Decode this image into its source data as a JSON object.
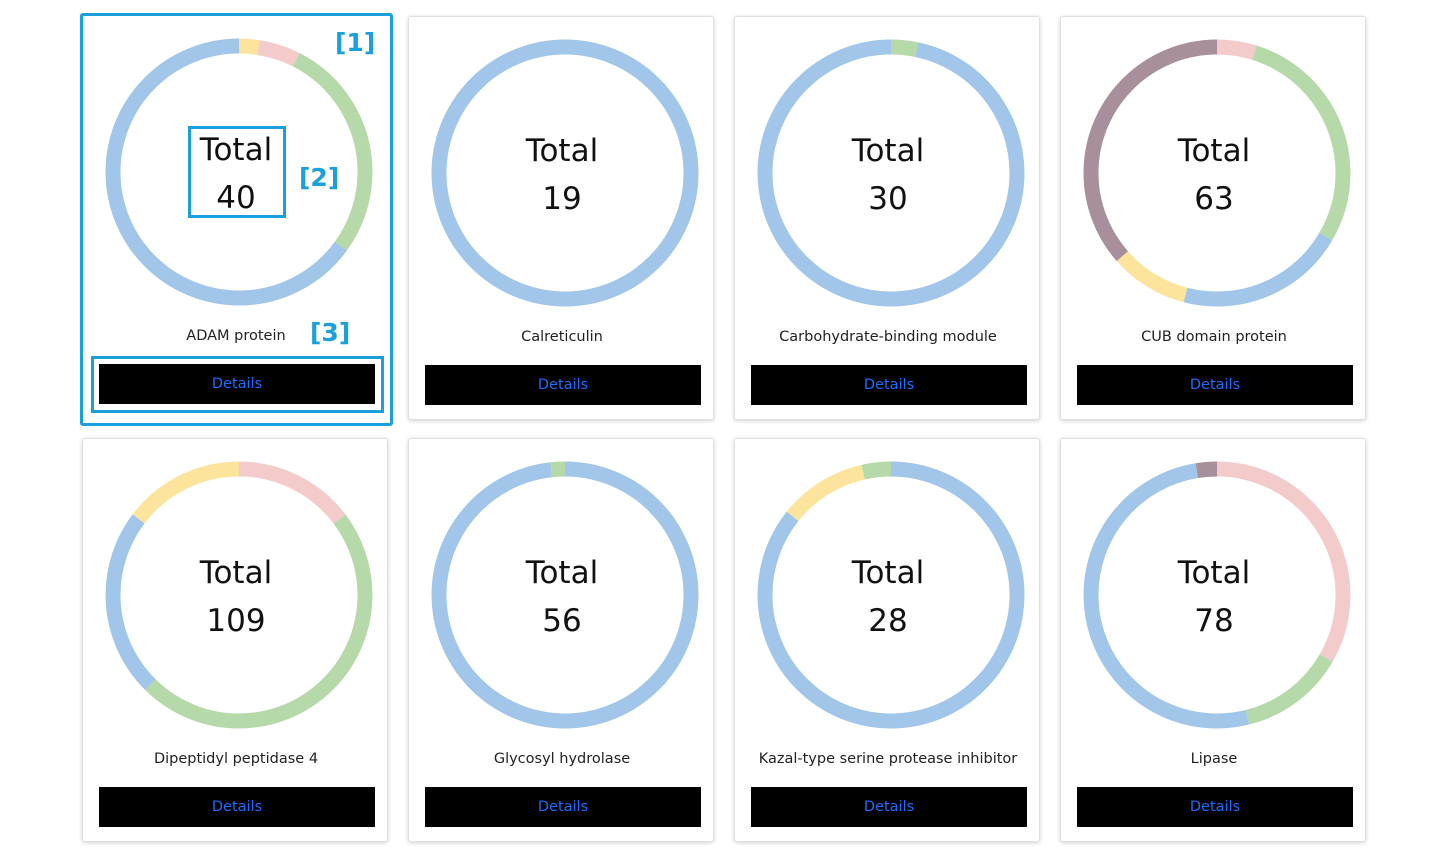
{
  "colors": {
    "blue": "#a1c6e9",
    "green": "#b6d9a9",
    "yellow": "#fde49c",
    "pink": "#f4cbcb",
    "mauve": "#a78f9b",
    "button_bg": "#000000",
    "button_text": "#1e6bff",
    "annotation": "#1aa0dc"
  },
  "annotations": [
    "[1]",
    "[2]",
    "[3]"
  ],
  "cards": [
    {
      "title": "ADAM protein",
      "total_label": "Total",
      "total_value": "40",
      "button": "Details",
      "chart_data": {
        "type": "pie",
        "total": 40,
        "slices": [
          {
            "color": "yellow",
            "fraction": 0.025
          },
          {
            "color": "pink",
            "fraction": 0.05
          },
          {
            "color": "green",
            "fraction": 0.275
          },
          {
            "color": "blue",
            "fraction": 0.65
          }
        ]
      }
    },
    {
      "title": "Calreticulin",
      "total_label": "Total",
      "total_value": "19",
      "button": "Details",
      "chart_data": {
        "type": "pie",
        "total": 19,
        "slices": [
          {
            "color": "blue",
            "fraction": 1.0
          }
        ]
      }
    },
    {
      "title": "Carbohydrate-binding module",
      "total_label": "Total",
      "total_value": "30",
      "button": "Details",
      "chart_data": {
        "type": "pie",
        "total": 30,
        "slices": [
          {
            "color": "green",
            "fraction": 0.033
          },
          {
            "color": "blue",
            "fraction": 0.967
          }
        ]
      }
    },
    {
      "title": "CUB domain protein",
      "total_label": "Total",
      "total_value": "63",
      "button": "Details",
      "chart_data": {
        "type": "pie",
        "total": 63,
        "slices": [
          {
            "color": "pink",
            "fraction": 0.048
          },
          {
            "color": "green",
            "fraction": 0.286
          },
          {
            "color": "blue",
            "fraction": 0.206
          },
          {
            "color": "yellow",
            "fraction": 0.095
          },
          {
            "color": "mauve",
            "fraction": 0.365
          }
        ]
      }
    },
    {
      "title": "Dipeptidyl peptidase 4",
      "total_label": "Total",
      "total_value": "109",
      "button": "Details",
      "chart_data": {
        "type": "pie",
        "total": 109,
        "slices": [
          {
            "color": "pink",
            "fraction": 0.147
          },
          {
            "color": "green",
            "fraction": 0.477
          },
          {
            "color": "blue",
            "fraction": 0.229
          },
          {
            "color": "yellow",
            "fraction": 0.147
          }
        ]
      }
    },
    {
      "title": "Glycosyl hydrolase",
      "total_label": "Total",
      "total_value": "56",
      "button": "Details",
      "chart_data": {
        "type": "pie",
        "total": 56,
        "slices": [
          {
            "color": "blue",
            "fraction": 0.982
          },
          {
            "color": "green",
            "fraction": 0.018
          }
        ]
      }
    },
    {
      "title": "Kazal-type serine protease inhibitor",
      "total_label": "Total",
      "total_value": "28",
      "button": "Details",
      "chart_data": {
        "type": "pie",
        "total": 28,
        "slices": [
          {
            "color": "blue",
            "fraction": 0.857
          },
          {
            "color": "yellow",
            "fraction": 0.107
          },
          {
            "color": "green",
            "fraction": 0.036
          }
        ]
      }
    },
    {
      "title": "Lipase",
      "total_label": "Total",
      "total_value": "78",
      "button": "Details",
      "chart_data": {
        "type": "pie",
        "total": 78,
        "slices": [
          {
            "color": "pink",
            "fraction": 0.333
          },
          {
            "color": "green",
            "fraction": 0.128
          },
          {
            "color": "blue",
            "fraction": 0.513
          },
          {
            "color": "mauve",
            "fraction": 0.026
          }
        ]
      }
    }
  ]
}
